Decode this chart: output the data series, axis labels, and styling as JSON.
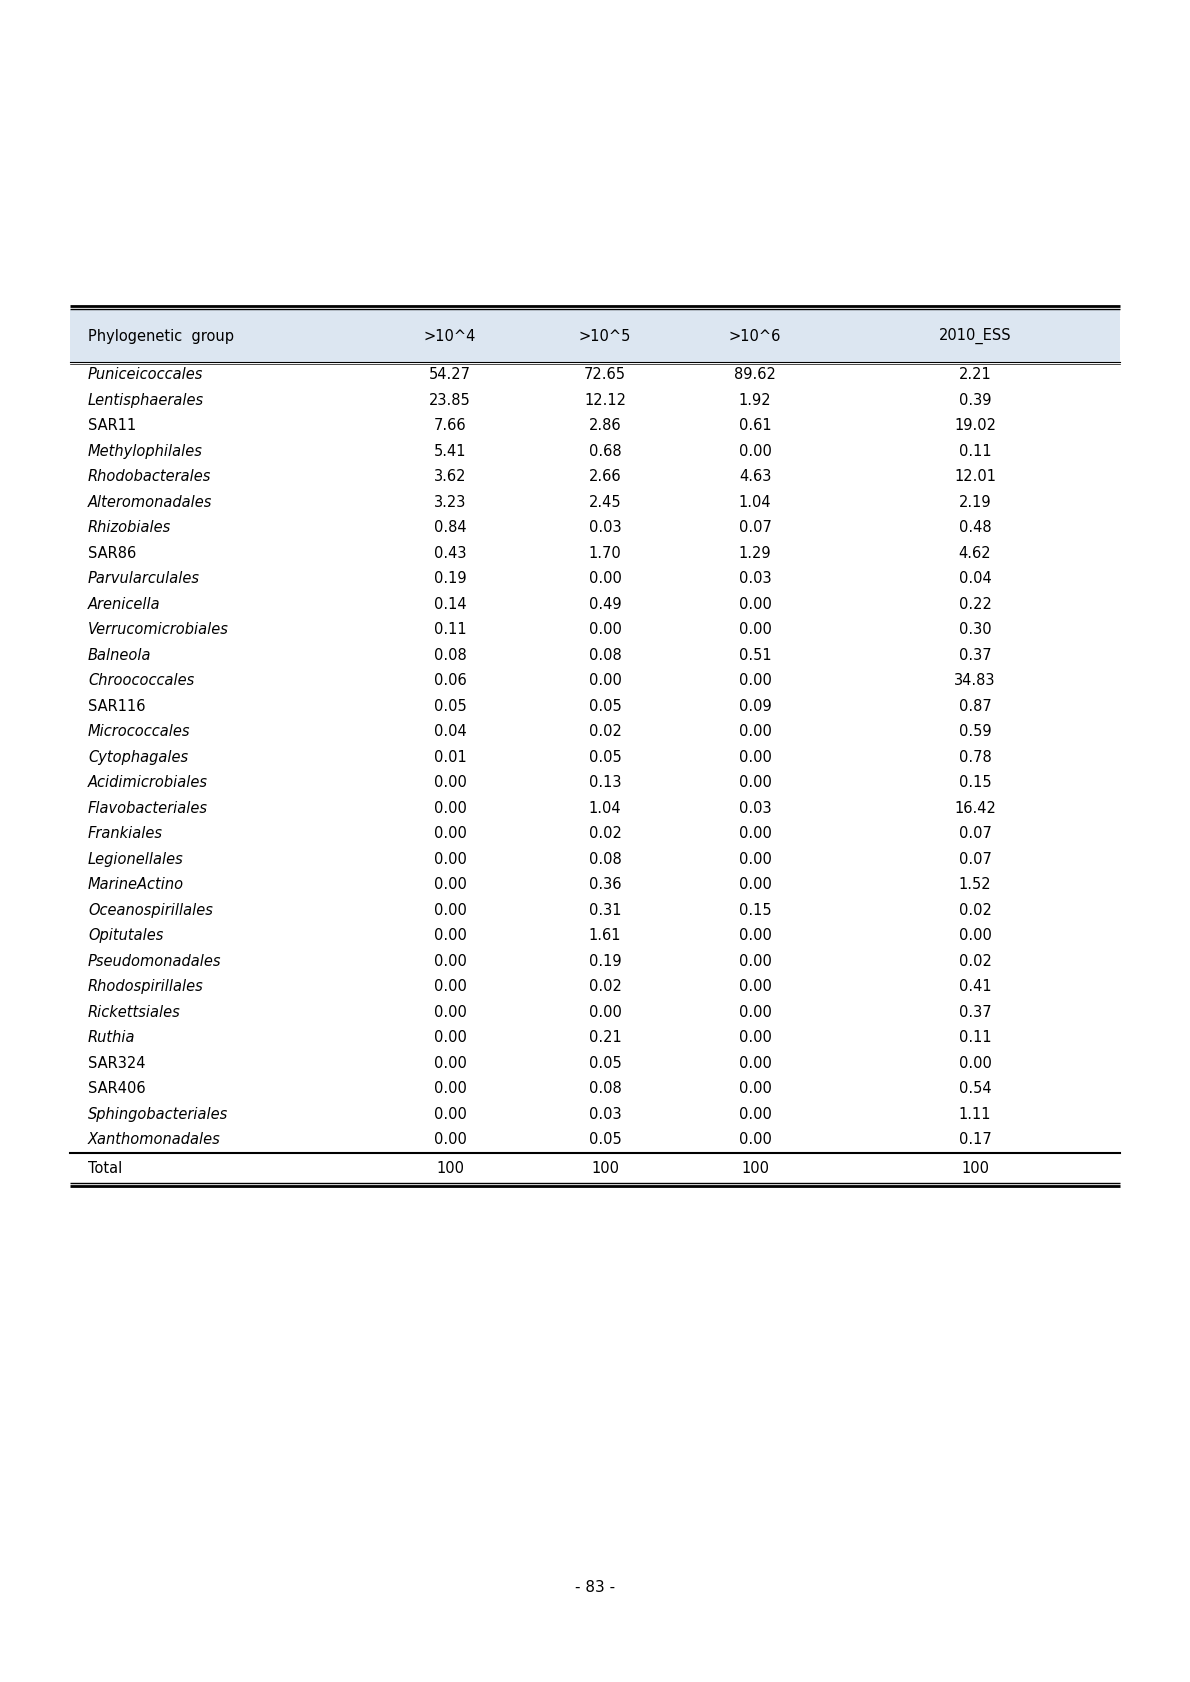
{
  "columns": [
    "Phylogenetic  group",
    ">10´4",
    ">10´5",
    ">10´6",
    "2010_ESS"
  ],
  "col_headers_display": [
    "Phylogenetic  group",
    ">10^4",
    ">10^5",
    ">10^6",
    "2010_ESS"
  ],
  "rows": [
    [
      "Puniceicoccales",
      "54.27",
      "72.65",
      "89.62",
      "2.21",
      true
    ],
    [
      "Lentisphaerales",
      "23.85",
      "12.12",
      "1.92",
      "0.39",
      true
    ],
    [
      "SAR11",
      "7.66",
      "2.86",
      "0.61",
      "19.02",
      false
    ],
    [
      "Methylophilales",
      "5.41",
      "0.68",
      "0.00",
      "0.11",
      true
    ],
    [
      "Rhodobacterales",
      "3.62",
      "2.66",
      "4.63",
      "12.01",
      true
    ],
    [
      "Alteromonadales",
      "3.23",
      "2.45",
      "1.04",
      "2.19",
      true
    ],
    [
      "Rhizobiales",
      "0.84",
      "0.03",
      "0.07",
      "0.48",
      true
    ],
    [
      "SAR86",
      "0.43",
      "1.70",
      "1.29",
      "4.62",
      false
    ],
    [
      "Parvularculales",
      "0.19",
      "0.00",
      "0.03",
      "0.04",
      true
    ],
    [
      "Arenicella",
      "0.14",
      "0.49",
      "0.00",
      "0.22",
      true
    ],
    [
      "Verrucomicrobiales",
      "0.11",
      "0.00",
      "0.00",
      "0.30",
      true
    ],
    [
      "Balneola",
      "0.08",
      "0.08",
      "0.51",
      "0.37",
      true
    ],
    [
      "Chroococcales",
      "0.06",
      "0.00",
      "0.00",
      "34.83",
      true
    ],
    [
      "SAR116",
      "0.05",
      "0.05",
      "0.09",
      "0.87",
      false
    ],
    [
      "Micrococcales",
      "0.04",
      "0.02",
      "0.00",
      "0.59",
      true
    ],
    [
      "Cytophagales",
      "0.01",
      "0.05",
      "0.00",
      "0.78",
      true
    ],
    [
      "Acidimicrobiales",
      "0.00",
      "0.13",
      "0.00",
      "0.15",
      true
    ],
    [
      "Flavobacteriales",
      "0.00",
      "1.04",
      "0.03",
      "16.42",
      true
    ],
    [
      "Frankiales",
      "0.00",
      "0.02",
      "0.00",
      "0.07",
      true
    ],
    [
      "Legionellales",
      "0.00",
      "0.08",
      "0.00",
      "0.07",
      true
    ],
    [
      "MarineActino",
      "0.00",
      "0.36",
      "0.00",
      "1.52",
      true
    ],
    [
      "Oceanospirillales",
      "0.00",
      "0.31",
      "0.15",
      "0.02",
      true
    ],
    [
      "Opitutales",
      "0.00",
      "1.61",
      "0.00",
      "0.00",
      true
    ],
    [
      "Pseudomonadales",
      "0.00",
      "0.19",
      "0.00",
      "0.02",
      true
    ],
    [
      "Rhodospirillales",
      "0.00",
      "0.02",
      "0.00",
      "0.41",
      true
    ],
    [
      "Rickettsiales",
      "0.00",
      "0.00",
      "0.00",
      "0.37",
      true
    ],
    [
      "Ruthia",
      "0.00",
      "0.21",
      "0.00",
      "0.11",
      true
    ],
    [
      "SAR324",
      "0.00",
      "0.05",
      "0.00",
      "0.00",
      false
    ],
    [
      "SAR406",
      "0.00",
      "0.08",
      "0.00",
      "0.54",
      false
    ],
    [
      "Sphingobacteriales",
      "0.00",
      "0.03",
      "0.00",
      "1.11",
      true
    ],
    [
      "Xanthomonadales",
      "0.00",
      "0.05",
      "0.00",
      "0.17",
      true
    ]
  ],
  "total_row": [
    "Total",
    "100",
    "100",
    "100",
    "100"
  ],
  "page_number": "- 83 -",
  "header_bg": "#dce6f1",
  "font_size": 10.5,
  "header_font_size": 10.5
}
